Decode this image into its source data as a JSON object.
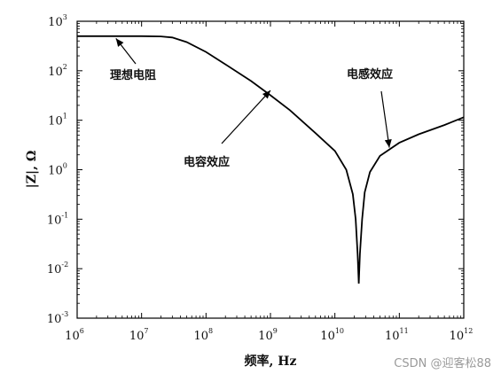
{
  "chart_data": {
    "type": "line",
    "title": "",
    "xlabel": "频率, Hz",
    "ylabel": "|Z|, Ω",
    "xscale": "log",
    "yscale": "log",
    "xlim": [
      1000000,
      1000000000000
    ],
    "ylim": [
      0.001,
      1000
    ],
    "grid": false,
    "x_ticks": [
      {
        "base": "10",
        "exp": "6"
      },
      {
        "base": "10",
        "exp": "7"
      },
      {
        "base": "10",
        "exp": "8"
      },
      {
        "base": "10",
        "exp": "9"
      },
      {
        "base": "10",
        "exp": "10"
      },
      {
        "base": "10",
        "exp": "11"
      },
      {
        "base": "10",
        "exp": "12"
      }
    ],
    "y_ticks": [
      {
        "base": "10",
        "exp": "-3"
      },
      {
        "base": "10",
        "exp": "-2"
      },
      {
        "base": "10",
        "exp": "-1"
      },
      {
        "base": "10",
        "exp": "0"
      },
      {
        "base": "10",
        "exp": "1"
      },
      {
        "base": "10",
        "exp": "2"
      },
      {
        "base": "10",
        "exp": "3"
      }
    ],
    "series": [
      {
        "color": "#000000",
        "points": [
          [
            1000000,
            500
          ],
          [
            3000000,
            500
          ],
          [
            10000000,
            500
          ],
          [
            20000000,
            495
          ],
          [
            30000000,
            470
          ],
          [
            50000000,
            380
          ],
          [
            100000000,
            240
          ],
          [
            200000000,
            135
          ],
          [
            500000000,
            62
          ],
          [
            1000000000,
            32
          ],
          [
            2000000000,
            16
          ],
          [
            5000000000,
            5.5
          ],
          [
            10000000000,
            2.4
          ],
          [
            15000000000,
            1.0
          ],
          [
            19000000000,
            0.32
          ],
          [
            21000000000,
            0.1
          ],
          [
            22500000000,
            0.02
          ],
          [
            23500000000,
            0.005
          ],
          [
            24500000000,
            0.02
          ],
          [
            26500000000,
            0.1
          ],
          [
            29000000000,
            0.35
          ],
          [
            35000000000,
            0.9
          ],
          [
            50000000000,
            1.9
          ],
          [
            100000000000,
            3.5
          ],
          [
            200000000000,
            5.2
          ],
          [
            500000000000,
            8.0
          ],
          [
            1000000000000,
            11.5
          ]
        ]
      }
    ],
    "annotations": [
      {
        "text": "理想电阻",
        "point": [
          4000000,
          450
        ]
      },
      {
        "text": "电容效应",
        "point": [
          1000000000,
          40
        ]
      },
      {
        "text": "电感效应",
        "point": [
          70000000000,
          2.8
        ]
      }
    ]
  },
  "watermark": "CSDN @迎客松88"
}
